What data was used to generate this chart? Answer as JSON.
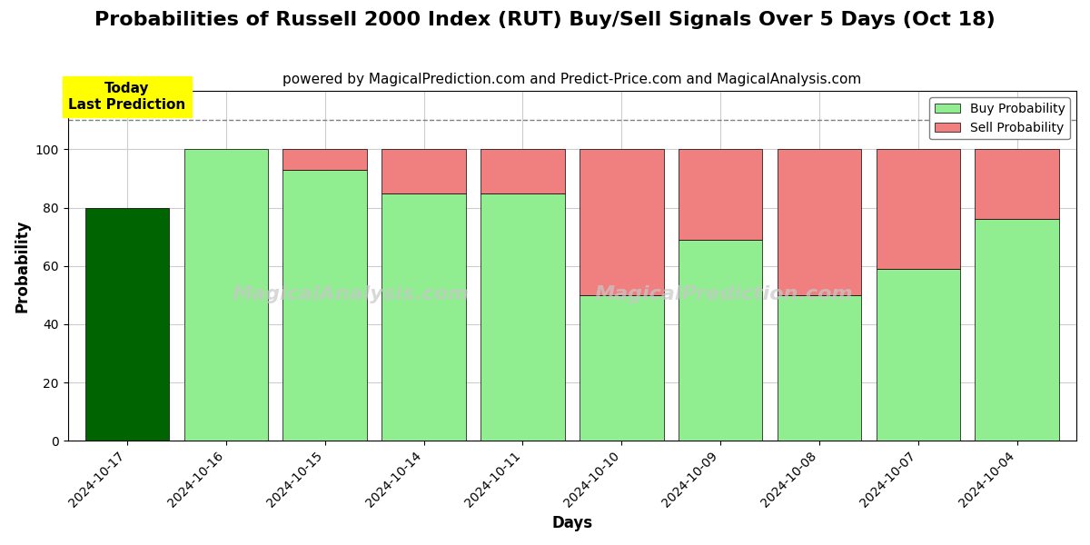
{
  "title": "Probabilities of Russell 2000 Index (RUT) Buy/Sell Signals Over 5 Days (Oct 18)",
  "subtitle": "powered by MagicalPrediction.com and Predict-Price.com and MagicalAnalysis.com",
  "xlabel": "Days",
  "ylabel": "Probability",
  "categories": [
    "2024-10-17",
    "2024-10-16",
    "2024-10-15",
    "2024-10-14",
    "2024-10-11",
    "2024-10-10",
    "2024-10-09",
    "2024-10-08",
    "2024-10-07",
    "2024-10-04"
  ],
  "buy_values": [
    80,
    100,
    93,
    85,
    85,
    50,
    69,
    50,
    59,
    76
  ],
  "sell_values": [
    0,
    0,
    7,
    15,
    15,
    50,
    31,
    50,
    41,
    24
  ],
  "today_bar_color": "#006400",
  "buy_color": "#90EE90",
  "sell_color": "#F08080",
  "dashed_line_y": 110,
  "ylim": [
    0,
    120
  ],
  "yticks": [
    0,
    20,
    40,
    60,
    80,
    100
  ],
  "today_annotation": "Today\nLast Prediction",
  "watermark_texts": [
    "MagicalAnalysis.com",
    "MagicalPrediction.com"
  ],
  "legend_buy_label": "Buy Probability",
  "legend_sell_label": "Sell Probability",
  "bar_width": 0.85,
  "figsize": [
    12,
    6
  ],
  "dpi": 100,
  "title_fontsize": 16,
  "subtitle_fontsize": 11,
  "axis_label_fontsize": 12,
  "tick_fontsize": 10,
  "background_color": "#ffffff",
  "grid_color": "#cccccc"
}
